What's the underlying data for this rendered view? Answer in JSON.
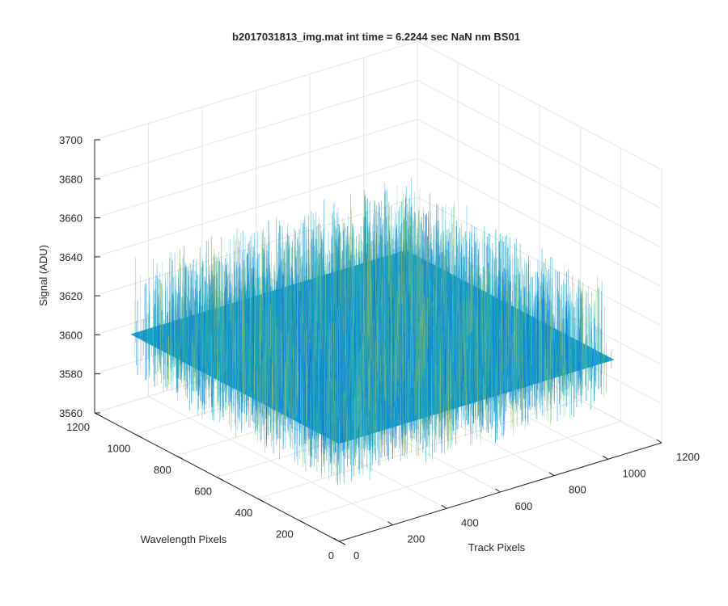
{
  "chart_data": {
    "type": "surface3d",
    "title": "b2017031813_img.mat int time = 6.2244 sec  NaN nm BS01",
    "xlabel": "Track Pixels",
    "ylabel": "Wavelength Pixels",
    "zlabel": "Signal (ADU)",
    "xlim": [
      0,
      1200
    ],
    "ylim": [
      0,
      1200
    ],
    "zlim": [
      3560,
      3700
    ],
    "x_ticks": [
      "0",
      "200",
      "400",
      "600",
      "800",
      "1000",
      "1200"
    ],
    "y_ticks": [
      "0",
      "200",
      "400",
      "600",
      "800",
      "1000",
      "1200"
    ],
    "z_ticks": [
      "3560",
      "3580",
      "3600",
      "3620",
      "3640",
      "3660",
      "3680",
      "3700"
    ],
    "surface": {
      "x_extent": [
        0,
        1024
      ],
      "y_extent": [
        0,
        1024
      ],
      "mean_signal": 3610,
      "noise_range": [
        3585,
        3650
      ],
      "colormap": "parula"
    },
    "grid": true,
    "colors": {
      "axis": "#262626",
      "grid": "#e6e6e6",
      "surface_low": "#0a72d8",
      "surface_mid": "#1aa6c4",
      "surface_high": "#8fc36a"
    }
  }
}
